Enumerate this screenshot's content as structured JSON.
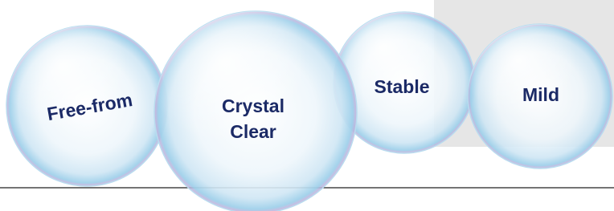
{
  "bubbles": [
    {
      "lines": [
        "Free-from"
      ]
    },
    {
      "lines": [
        "Crystal",
        "Clear"
      ]
    },
    {
      "lines": [
        "Stable"
      ]
    },
    {
      "lines": [
        "Mild"
      ]
    }
  ]
}
